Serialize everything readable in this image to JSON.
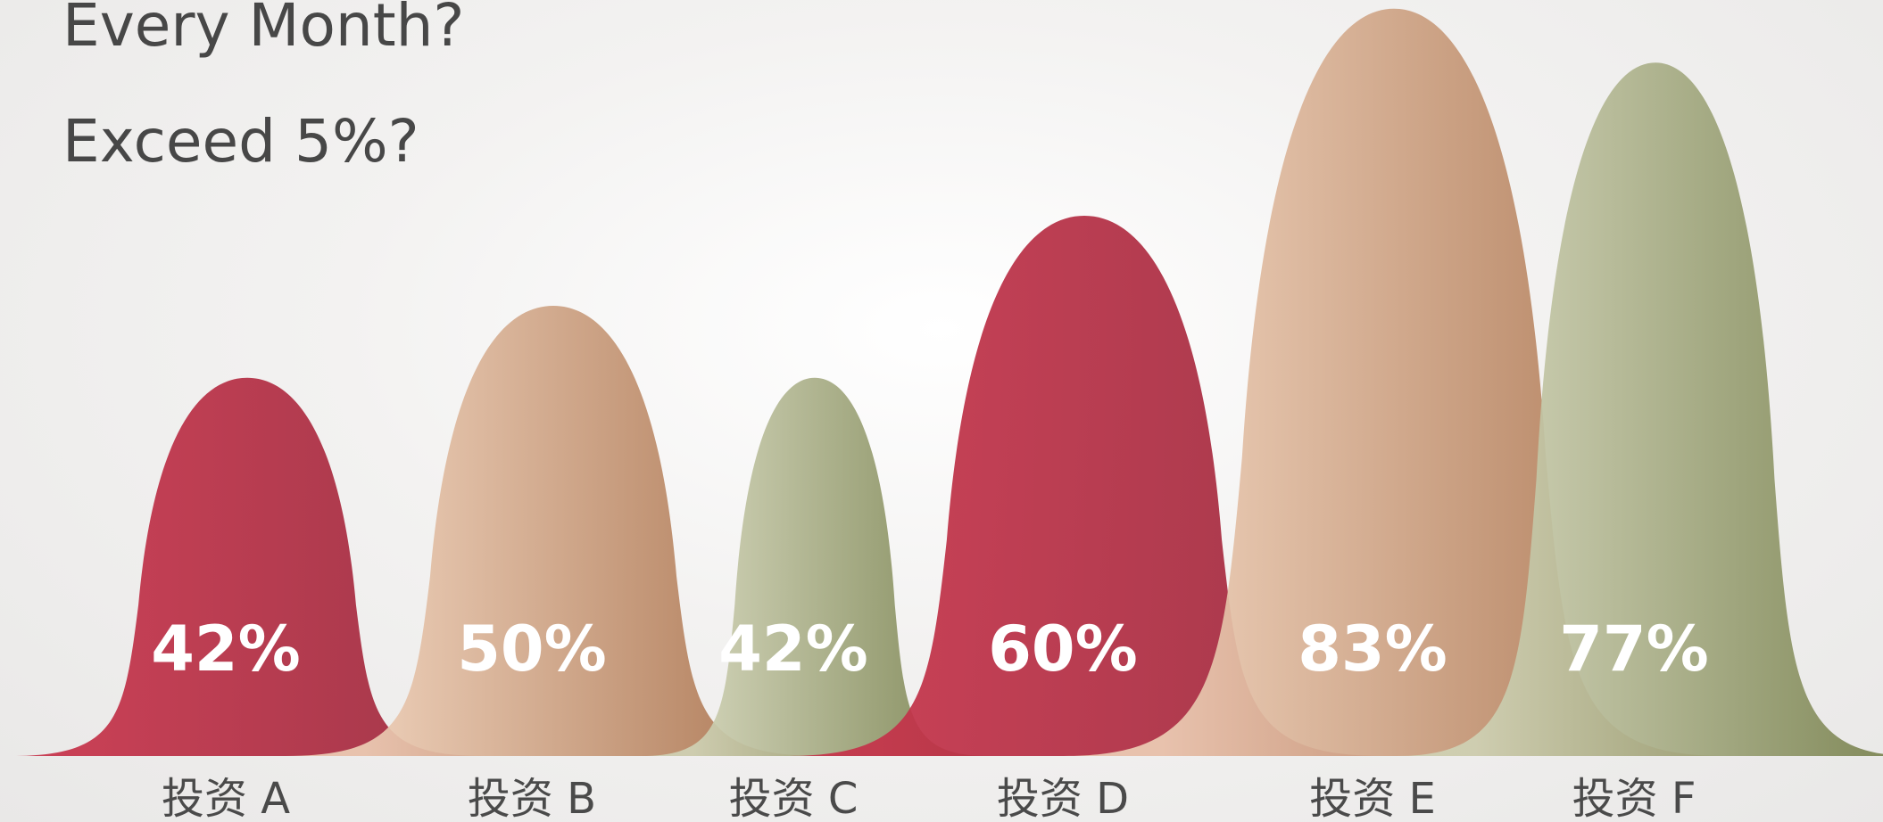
{
  "title": {
    "line1": "Every Month?",
    "line2": "Exceed 5%?"
  },
  "colors": {
    "crimson": [
      "#c5334a",
      "#9e2a3e"
    ],
    "tan": [
      "#ecccb4",
      "#a8704a"
    ],
    "olive": [
      "#cfd1b4",
      "#7a8350"
    ],
    "title_text": "#474747",
    "value_text": "#ffffff",
    "category_text": "#4a4a4a"
  },
  "chart_data": {
    "type": "area",
    "categories": [
      "投资 A",
      "投资 B",
      "投资 C",
      "投资 D",
      "投资 E",
      "投资 F"
    ],
    "values": [
      42,
      50,
      42,
      60,
      83,
      77
    ],
    "value_labels": [
      "42%",
      "50%",
      "42%",
      "60%",
      "83%",
      "77%"
    ],
    "series_colors": [
      "crimson",
      "tan",
      "olive",
      "crimson",
      "tan",
      "olive"
    ],
    "ylim": [
      0,
      100
    ],
    "grid": false,
    "legend": "none"
  }
}
